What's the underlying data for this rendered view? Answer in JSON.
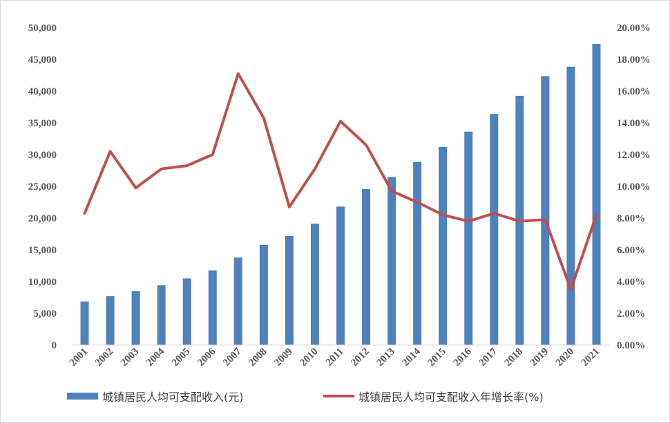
{
  "chart_data": {
    "type": "bar",
    "categories": [
      "2001",
      "2002",
      "2003",
      "2004",
      "2005",
      "2006",
      "2007",
      "2008",
      "2009",
      "2010",
      "2011",
      "2012",
      "2013",
      "2014",
      "2015",
      "2016",
      "2017",
      "2018",
      "2019",
      "2020",
      "2021"
    ],
    "series": [
      {
        "name": "城镇居民人均可支配收入(元)",
        "type": "bar",
        "axis": "left",
        "color": "#4f81bd",
        "values": [
          6860,
          7703,
          8472,
          9422,
          10493,
          11759,
          13786,
          15781,
          17175,
          19109,
          21810,
          24565,
          26467,
          28844,
          31195,
          33616,
          36396,
          39251,
          42359,
          43834,
          47412
        ]
      },
      {
        "name": "城镇居民人均可支配收入年增长率(%)",
        "type": "line",
        "axis": "right",
        "color": "#c0504d",
        "values": [
          8.3,
          12.2,
          9.9,
          11.1,
          11.3,
          12.0,
          17.1,
          14.3,
          8.7,
          11.1,
          14.1,
          12.6,
          9.7,
          9.0,
          8.2,
          7.8,
          8.3,
          7.8,
          7.9,
          3.5,
          8.2
        ]
      }
    ],
    "y_left": {
      "ylim": [
        0,
        50000
      ],
      "ticks": [
        "0",
        "5,000",
        "10,000",
        "15,000",
        "20,000",
        "25,000",
        "30,000",
        "35,000",
        "40,000",
        "45,000",
        "50,000"
      ]
    },
    "y_right": {
      "ylim": [
        0,
        20
      ],
      "ticks": [
        "0.00%",
        "2.00%",
        "4.00%",
        "6.00%",
        "8.00%",
        "10.00%",
        "12.00%",
        "14.00%",
        "16.00%",
        "18.00%",
        "20.00%"
      ]
    },
    "grid": false,
    "legend_position": "bottom",
    "title": "",
    "xlabel": "",
    "ylabel": ""
  }
}
